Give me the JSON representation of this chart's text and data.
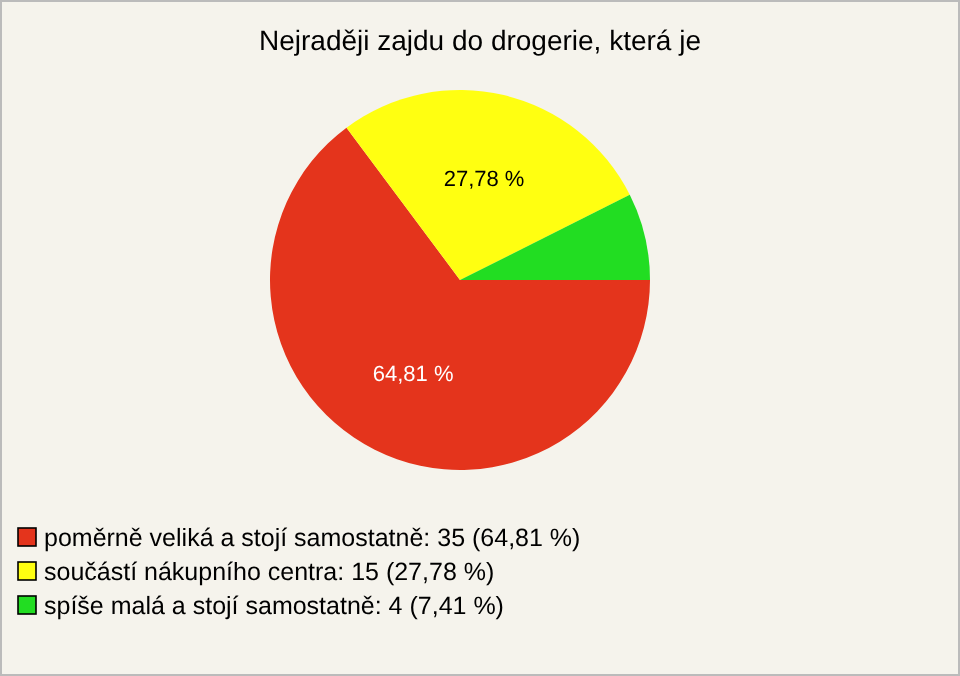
{
  "chart_data": {
    "type": "pie",
    "title": "Nejraději zajdu do drogerie, která je",
    "categories": [
      "poměrně veliká a stojí samostatně: 35 (64,81 %)",
      "součástí nákupního centra: 15 (27,78 %)",
      "spíše malá a stojí samostatně: 4 (7,41 %)"
    ],
    "values": [
      64.81,
      27.78,
      7.41
    ],
    "colors": [
      "#e4341c",
      "#ffff11",
      "#22dd22"
    ],
    "value_labels": [
      "64,81 %",
      "27,78 %",
      null
    ],
    "legend": "bottom left"
  }
}
